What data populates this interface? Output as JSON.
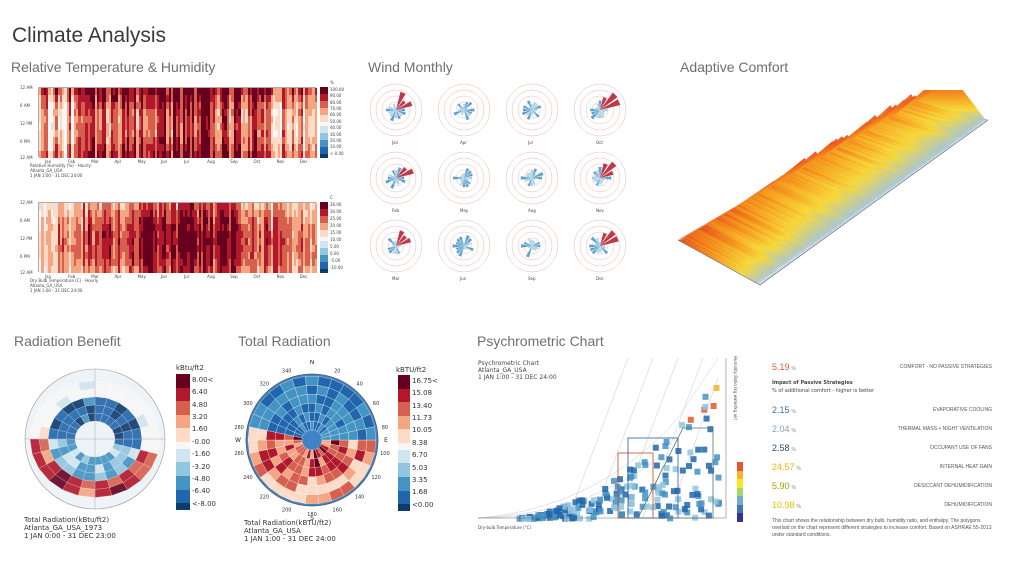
{
  "page_title": "Climate Analysis",
  "sections": {
    "rel_temp_humidity": "Relative Temperature & Humidity",
    "wind_monthly": "Wind Monthly",
    "adaptive_comfort": "Adaptive Comfort",
    "radiation_benefit": "Radiation Benefit",
    "total_radiation": "Total Radiation",
    "psychrometric_chart": "Psychrometric Chart"
  },
  "heatmap_humidity": {
    "months": [
      "Jan",
      "Feb",
      "Mar",
      "Apr",
      "May",
      "Jun",
      "Jul",
      "Aug",
      "Sep",
      "Oct",
      "Nov",
      "Dec"
    ],
    "hours": [
      "12 AM",
      "6 AM",
      "12 PM",
      "6 PM",
      "12 AM"
    ],
    "legend": [
      "%",
      "100.00",
      "90.00",
      "80.00",
      "70.00",
      "60.00",
      "50.00",
      "40.00",
      "30.00",
      "20.00",
      "10.00",
      "< 0.00"
    ],
    "caption": [
      "Relative Humidity (%) - Hourly",
      "Atlanta_GA_USA",
      "1 JAN 1:00 - 31 DEC 24:00"
    ]
  },
  "heatmap_temperature": {
    "months": [
      "Jan",
      "Feb",
      "Mar",
      "Apr",
      "May",
      "Jun",
      "Jul",
      "Aug",
      "Sep",
      "Oct",
      "Nov",
      "Dec"
    ],
    "hours": [
      "12 AM",
      "6 AM",
      "12 PM",
      "6 PM",
      "12 AM"
    ],
    "legend": [
      "C",
      "36.00",
      "30.00",
      "25.00",
      "20.00",
      "15.00",
      "10.00",
      "5.00",
      "0.00",
      "-5.00",
      "-10.00"
    ],
    "caption": [
      "Dry Bulb Temperature (C) - Hourly",
      "Atlanta_GA_USA",
      "1 JAN 1:00 - 31 DEC 24:00"
    ]
  },
  "wind_roses": [
    "Jan",
    "Apr",
    "Jul",
    "Oct",
    "Feb",
    "May",
    "Aug",
    "Nov",
    "Mar",
    "Jun",
    "Sep",
    "Dec"
  ],
  "radiation_benefit": {
    "unit": "kBtu/ft2",
    "legend": [
      "8.00<",
      "6.40",
      "4.80",
      "3.20",
      "1.60",
      "-0.00",
      "-1.60",
      "-3.20",
      "-4.80",
      "-6.40",
      "<-8.00"
    ],
    "caption": [
      "Total Radiation(kBtu/ft2)",
      "Atlanta_GA_USA_1973",
      "1 JAN 0:00 - 31 DEC 23:00"
    ]
  },
  "total_radiation": {
    "unit": "kBTU/ft2",
    "legend": [
      "16.75<",
      "15.08",
      "13.40",
      "11.73",
      "10.05",
      "8.38",
      "6.70",
      "5.03",
      "3.35",
      "1.68",
      "<0.00"
    ],
    "compass": [
      "N",
      "E",
      "S",
      "W"
    ],
    "azimuths": [
      "340",
      "320",
      "300",
      "280",
      "260",
      "240",
      "220",
      "200",
      "180",
      "160",
      "140",
      "120",
      "100",
      "80",
      "60",
      "40",
      "20"
    ],
    "caption": [
      "Total Radiation(kBTU/ft2)",
      "Atlanta_GA_USA",
      "1 JAN 1:00 - 31 DEC 24:00"
    ]
  },
  "psychrometric": {
    "header": [
      "Psychrometric Chart",
      "Atlanta_GA_USA",
      "1 JAN 1:00 - 31 DEC 24:00"
    ],
    "x_label": "Dry-bulb Temperature (°C)",
    "y_label": "Humidity Ratio (kg water/kg air)",
    "comfort": {
      "value": "5.19",
      "unit": "%",
      "label": "COMFORT - NO PASSIVE STRATEGIES",
      "color": "#e05a2b"
    },
    "strategies_title": "Impact of Passive Strategies",
    "strategies_subtitle": "% of additional comfort - higher is better",
    "strategies": [
      {
        "value": "2.15",
        "unit": "%",
        "label": "EVAPORATIVE COOLING",
        "color": "#3b6fb6"
      },
      {
        "value": "2.04",
        "unit": "%",
        "label": "THERMAL MASS + NIGHT VENTILATION",
        "color": "#8aa0b8"
      },
      {
        "value": "2.58",
        "unit": "%",
        "label": "OCCUPANT USE OF FANS",
        "color": "#1f4e79"
      },
      {
        "value": "24.57",
        "unit": "%",
        "label": "INTERNAL HEAT GAIN",
        "color": "#f0b400"
      },
      {
        "value": "5.90",
        "unit": "%",
        "label": "DESICCANT DEHUMIDIFICATION",
        "color": "#a0a000"
      },
      {
        "value": "10.98",
        "unit": "%",
        "label": "DEHUMIDIFICATION",
        "color": "#e8c200"
      }
    ],
    "note": "This chart shows the relationship between dry bulb, humidity ratio, and enthalpy. The polygons overlaid on the chart represent different strategies to increase comfort. Based on ASHRAE 55-2013 under standard conditions."
  }
}
